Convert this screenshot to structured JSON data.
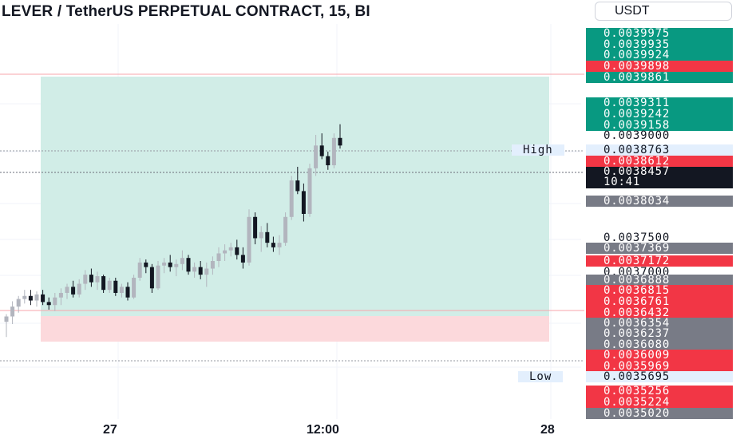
{
  "header": {
    "title": "LEVER / TetherUS PERPETUAL CONTRACT, 15, BI",
    "currency": "USDT"
  },
  "price_axis": {
    "labels": [
      {
        "value": "0.0039975",
        "color": "green"
      },
      {
        "value": "0.0039935",
        "color": "green"
      },
      {
        "value": "0.0039924",
        "color": "green"
      },
      {
        "value": "0.0039898",
        "color": "red"
      },
      {
        "value": "0.0039861",
        "color": "green"
      },
      {
        "value": "0.0039311",
        "color": "green"
      },
      {
        "value": "0.0039242",
        "color": "green"
      },
      {
        "value": "0.0039158",
        "color": "green"
      },
      {
        "value": "0.0039000",
        "color": "plain"
      },
      {
        "value": "0.0038763",
        "color": "light"
      },
      {
        "value": "0.0038612",
        "color": "red"
      },
      {
        "value": "0.0038034",
        "color": "gray"
      },
      {
        "value": "0.0037500",
        "color": "plain"
      },
      {
        "value": "0.0037369",
        "color": "gray"
      },
      {
        "value": "0.0037172",
        "color": "red"
      },
      {
        "value": "0.0037000",
        "color": "plain"
      },
      {
        "value": "0.0036888",
        "color": "gray"
      },
      {
        "value": "0.0036815",
        "color": "red"
      },
      {
        "value": "0.0036761",
        "color": "red"
      },
      {
        "value": "0.0036432",
        "color": "red"
      },
      {
        "value": "0.0036354",
        "color": "gray"
      },
      {
        "value": "0.0036237",
        "color": "gray"
      },
      {
        "value": "0.0036080",
        "color": "gray"
      },
      {
        "value": "0.0036009",
        "color": "red"
      },
      {
        "value": "0.0035969",
        "color": "red"
      },
      {
        "value": "0.0035695",
        "color": "light"
      },
      {
        "value": "0.0035256",
        "color": "red"
      },
      {
        "value": "0.0035224",
        "color": "red"
      },
      {
        "value": "0.0035020",
        "color": "gray"
      }
    ],
    "current_price": "0.0038457",
    "countdown": "10:41"
  },
  "high_tag": "High",
  "low_tag": "Low",
  "time_axis": [
    "27",
    "12:00",
    "28"
  ],
  "colors": {
    "up": "#b2b5be",
    "down": "#131722",
    "profit_zone": "#d1ede7",
    "loss_zone": "#fcd9dc",
    "green": "#089981",
    "red": "#f23645"
  },
  "chart_data": {
    "type": "candlestick",
    "x_label_ticks": [
      "27",
      "12:00",
      "28"
    ],
    "ylim": [
      0.00349,
      0.00401
    ],
    "position": {
      "side": "long",
      "entry": 0.003642,
      "target": 0.003985,
      "stop": 0.003604
    },
    "candles": [
      {
        "o": 0.003618,
        "h": 0.003628,
        "l": 0.003598,
        "c": 0.003625
      },
      {
        "o": 0.003625,
        "h": 0.003645,
        "l": 0.003615,
        "c": 0.003638
      },
      {
        "o": 0.003638,
        "h": 0.003652,
        "l": 0.00363,
        "c": 0.003648
      },
      {
        "o": 0.003648,
        "h": 0.00366,
        "l": 0.003642,
        "c": 0.003652
      },
      {
        "o": 0.003652,
        "h": 0.00366,
        "l": 0.00364,
        "c": 0.003646
      },
      {
        "o": 0.003646,
        "h": 0.003658,
        "l": 0.003638,
        "c": 0.003654
      },
      {
        "o": 0.003654,
        "h": 0.00366,
        "l": 0.00364,
        "c": 0.003644
      },
      {
        "o": 0.003644,
        "h": 0.00365,
        "l": 0.003634,
        "c": 0.00364
      },
      {
        "o": 0.00364,
        "h": 0.003656,
        "l": 0.003632,
        "c": 0.00365
      },
      {
        "o": 0.00365,
        "h": 0.003662,
        "l": 0.00364,
        "c": 0.003656
      },
      {
        "o": 0.003656,
        "h": 0.003668,
        "l": 0.003648,
        "c": 0.003664
      },
      {
        "o": 0.003664,
        "h": 0.003672,
        "l": 0.00365,
        "c": 0.003654
      },
      {
        "o": 0.003654,
        "h": 0.003674,
        "l": 0.00365,
        "c": 0.003668
      },
      {
        "o": 0.003668,
        "h": 0.003686,
        "l": 0.00366,
        "c": 0.00368
      },
      {
        "o": 0.00368,
        "h": 0.003688,
        "l": 0.003664,
        "c": 0.00367
      },
      {
        "o": 0.00367,
        "h": 0.003684,
        "l": 0.00366,
        "c": 0.003678
      },
      {
        "o": 0.003678,
        "h": 0.00368,
        "l": 0.003656,
        "c": 0.00366
      },
      {
        "o": 0.00366,
        "h": 0.003676,
        "l": 0.003656,
        "c": 0.003672
      },
      {
        "o": 0.003672,
        "h": 0.003676,
        "l": 0.003652,
        "c": 0.003656
      },
      {
        "o": 0.003656,
        "h": 0.003668,
        "l": 0.00365,
        "c": 0.003664
      },
      {
        "o": 0.003664,
        "h": 0.00367,
        "l": 0.003646,
        "c": 0.00365
      },
      {
        "o": 0.00365,
        "h": 0.00368,
        "l": 0.003648,
        "c": 0.003676
      },
      {
        "o": 0.003676,
        "h": 0.003702,
        "l": 0.003672,
        "c": 0.003696
      },
      {
        "o": 0.003696,
        "h": 0.0037,
        "l": 0.003682,
        "c": 0.00369
      },
      {
        "o": 0.00369,
        "h": 0.003694,
        "l": 0.003656,
        "c": 0.003662
      },
      {
        "o": 0.003662,
        "h": 0.003698,
        "l": 0.00366,
        "c": 0.003692
      },
      {
        "o": 0.003692,
        "h": 0.003702,
        "l": 0.003682,
        "c": 0.003696
      },
      {
        "o": 0.003696,
        "h": 0.003706,
        "l": 0.003684,
        "c": 0.00369
      },
      {
        "o": 0.00369,
        "h": 0.0037,
        "l": 0.003678,
        "c": 0.003694
      },
      {
        "o": 0.003694,
        "h": 0.003712,
        "l": 0.003686,
        "c": 0.003702
      },
      {
        "o": 0.003702,
        "h": 0.003706,
        "l": 0.00368,
        "c": 0.003684
      },
      {
        "o": 0.003684,
        "h": 0.003696,
        "l": 0.003676,
        "c": 0.00369
      },
      {
        "o": 0.00369,
        "h": 0.003698,
        "l": 0.003674,
        "c": 0.00368
      },
      {
        "o": 0.00368,
        "h": 0.003696,
        "l": 0.003664,
        "c": 0.003688
      },
      {
        "o": 0.003688,
        "h": 0.003704,
        "l": 0.00368,
        "c": 0.003698
      },
      {
        "o": 0.003698,
        "h": 0.003716,
        "l": 0.00369,
        "c": 0.003708
      },
      {
        "o": 0.003708,
        "h": 0.00372,
        "l": 0.003698,
        "c": 0.003712
      },
      {
        "o": 0.003712,
        "h": 0.003722,
        "l": 0.003704,
        "c": 0.003716
      },
      {
        "o": 0.003716,
        "h": 0.003726,
        "l": 0.0037,
        "c": 0.003706
      },
      {
        "o": 0.003706,
        "h": 0.003716,
        "l": 0.003688,
        "c": 0.003696
      },
      {
        "o": 0.003696,
        "h": 0.003766,
        "l": 0.003692,
        "c": 0.003756
      },
      {
        "o": 0.003756,
        "h": 0.003762,
        "l": 0.00372,
        "c": 0.003728
      },
      {
        "o": 0.003728,
        "h": 0.003744,
        "l": 0.00371,
        "c": 0.003736
      },
      {
        "o": 0.003736,
        "h": 0.003748,
        "l": 0.003716,
        "c": 0.003722
      },
      {
        "o": 0.003722,
        "h": 0.00373,
        "l": 0.00371,
        "c": 0.003716
      },
      {
        "o": 0.003716,
        "h": 0.003732,
        "l": 0.003706,
        "c": 0.003722
      },
      {
        "o": 0.003722,
        "h": 0.003762,
        "l": 0.003718,
        "c": 0.003756
      },
      {
        "o": 0.003756,
        "h": 0.00381,
        "l": 0.003752,
        "c": 0.003804
      },
      {
        "o": 0.003804,
        "h": 0.003822,
        "l": 0.003786,
        "c": 0.00379
      },
      {
        "o": 0.00379,
        "h": 0.0038,
        "l": 0.00375,
        "c": 0.00376
      },
      {
        "o": 0.00376,
        "h": 0.003826,
        "l": 0.003756,
        "c": 0.00382
      },
      {
        "o": 0.00382,
        "h": 0.003864,
        "l": 0.00381,
        "c": 0.00385
      },
      {
        "o": 0.00385,
        "h": 0.003866,
        "l": 0.003832,
        "c": 0.003836
      },
      {
        "o": 0.003836,
        "h": 0.003842,
        "l": 0.003818,
        "c": 0.003824
      },
      {
        "o": 0.003824,
        "h": 0.003866,
        "l": 0.00382,
        "c": 0.00386
      },
      {
        "o": 0.00386,
        "h": 0.003878,
        "l": 0.003846,
        "c": 0.00385
      }
    ]
  }
}
